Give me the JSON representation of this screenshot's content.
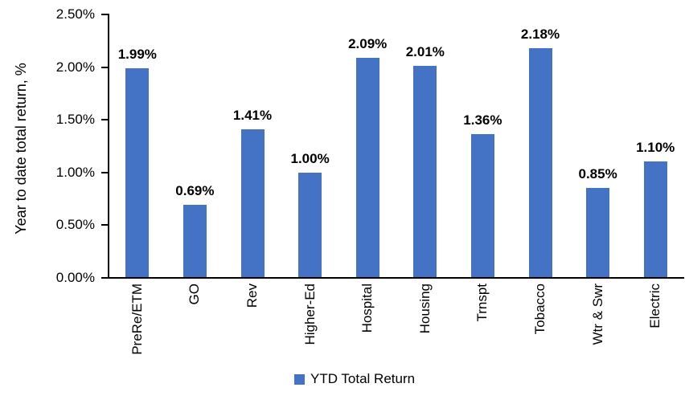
{
  "chart_data": {
    "type": "bar",
    "title": "",
    "categories": [
      "PreRe/ETM",
      "GO",
      "Rev",
      "Higher-Ed",
      "Hospital",
      "Housing",
      "Trnspt",
      "Tobacco",
      "Wtr & Swr",
      "Electric"
    ],
    "values": [
      1.99,
      0.69,
      1.41,
      1.0,
      2.09,
      2.01,
      1.36,
      2.18,
      0.85,
      1.1
    ],
    "value_labels": [
      "1.99%",
      "0.69%",
      "1.41%",
      "1.00%",
      "2.09%",
      "2.01%",
      "1.36%",
      "2.18%",
      "0.85%",
      "1.10%"
    ],
    "xlabel": "",
    "ylabel": "Year to date total return, %",
    "ytick_labels": [
      "0.00%",
      "0.50%",
      "1.00%",
      "1.50%",
      "2.00%",
      "2.50%"
    ],
    "ylim": [
      0,
      2.5
    ],
    "grid": false,
    "legend": {
      "label": "YTD Total Return",
      "position": "bottom-center"
    },
    "colors": {
      "bar": "#4472C4",
      "axis": "#000000",
      "text": "#000000",
      "background": "#FFFFFF"
    }
  }
}
